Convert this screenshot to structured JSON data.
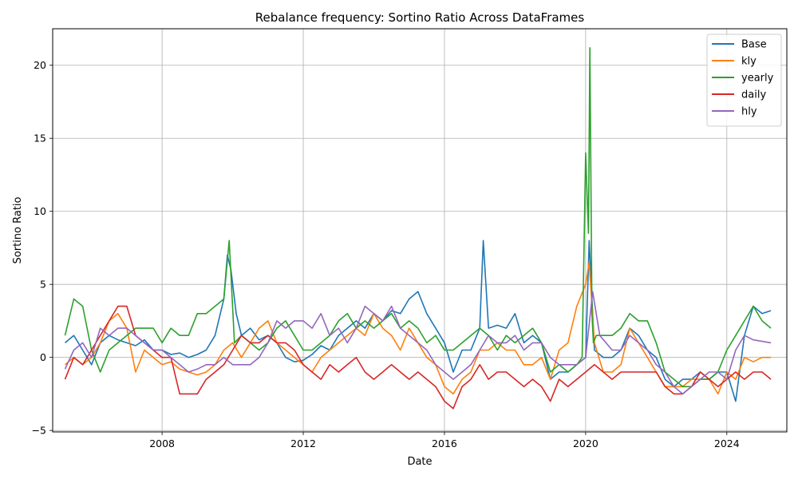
{
  "chart_data": {
    "type": "line",
    "title": "Rebalance frequency: Sortino Ratio Across DataFrames",
    "xlabel": "Date",
    "ylabel": "Sortino Ratio",
    "xlim": [
      2004.9,
      2025.7
    ],
    "ylim": [
      -5.1,
      22.5
    ],
    "x_ticks": [
      2008,
      2012,
      2016,
      2020,
      2024
    ],
    "x_tick_labels": [
      "2008",
      "2012",
      "2016",
      "2020",
      "2024"
    ],
    "y_ticks": [
      -5,
      0,
      5,
      10,
      15,
      20
    ],
    "y_tick_labels": [
      "−5",
      "0",
      "5",
      "10",
      "15",
      "20"
    ],
    "grid": true,
    "legend_position": "top-right",
    "series": [
      {
        "name": "Base",
        "color": "#1f77b4",
        "x": [
          2005.25,
          2005.5,
          2005.75,
          2006.0,
          2006.25,
          2006.5,
          2006.75,
          2007.0,
          2007.25,
          2007.5,
          2007.75,
          2008.0,
          2008.25,
          2008.5,
          2008.75,
          2009.0,
          2009.25,
          2009.5,
          2009.75,
          2009.85,
          2009.95,
          2010.1,
          2010.25,
          2010.5,
          2010.75,
          2011.0,
          2011.25,
          2011.5,
          2011.75,
          2012.0,
          2012.25,
          2012.5,
          2012.75,
          2013.0,
          2013.25,
          2013.5,
          2013.75,
          2014.0,
          2014.25,
          2014.5,
          2014.75,
          2015.0,
          2015.25,
          2015.5,
          2015.75,
          2016.0,
          2016.25,
          2016.5,
          2016.75,
          2017.0,
          2017.1,
          2017.25,
          2017.5,
          2017.75,
          2018.0,
          2018.25,
          2018.5,
          2018.75,
          2019.0,
          2019.25,
          2019.5,
          2019.75,
          2020.0,
          2020.1,
          2020.25,
          2020.5,
          2020.75,
          2021.0,
          2021.25,
          2021.5,
          2021.75,
          2022.0,
          2022.25,
          2022.5,
          2022.75,
          2023.0,
          2023.25,
          2023.5,
          2023.75,
          2024.0,
          2024.25,
          2024.5,
          2024.75,
          2025.0,
          2025.25
        ],
        "y": [
          1.0,
          1.5,
          0.5,
          -0.5,
          1.0,
          1.5,
          1.2,
          1.0,
          0.8,
          1.2,
          0.5,
          0.5,
          0.2,
          0.3,
          0.0,
          0.2,
          0.5,
          1.5,
          4.0,
          7.0,
          6.0,
          3.0,
          1.5,
          2.0,
          1.2,
          1.5,
          1.0,
          0.0,
          -0.3,
          -0.2,
          0.2,
          0.8,
          0.5,
          1.5,
          2.0,
          2.5,
          2.0,
          3.0,
          2.5,
          3.2,
          3.0,
          4.0,
          4.5,
          3.0,
          2.0,
          1.0,
          -1.0,
          0.5,
          0.5,
          2.0,
          8.0,
          2.0,
          2.2,
          2.0,
          3.0,
          1.0,
          1.5,
          1.0,
          -1.5,
          -1.0,
          -1.0,
          -0.5,
          0.0,
          8.0,
          0.5,
          0.0,
          0.0,
          0.5,
          2.0,
          1.5,
          0.5,
          0.0,
          -1.5,
          -2.0,
          -1.5,
          -1.5,
          -1.0,
          -1.5,
          -1.0,
          -1.0,
          -3.0,
          1.5,
          3.5,
          3.0,
          3.2
        ]
      },
      {
        "name": "kly",
        "color": "#ff7f0e",
        "x": [
          2005.25,
          2005.5,
          2005.75,
          2006.0,
          2006.25,
          2006.5,
          2006.75,
          2007.0,
          2007.25,
          2007.5,
          2007.75,
          2008.0,
          2008.25,
          2008.5,
          2008.75,
          2009.0,
          2009.25,
          2009.5,
          2009.75,
          2010.0,
          2010.25,
          2010.5,
          2010.75,
          2011.0,
          2011.25,
          2011.5,
          2011.75,
          2012.0,
          2012.25,
          2012.5,
          2012.75,
          2013.0,
          2013.25,
          2013.5,
          2013.75,
          2014.0,
          2014.25,
          2014.5,
          2014.75,
          2015.0,
          2015.25,
          2015.5,
          2015.75,
          2016.0,
          2016.25,
          2016.5,
          2016.75,
          2017.0,
          2017.25,
          2017.5,
          2017.75,
          2018.0,
          2018.25,
          2018.5,
          2018.75,
          2019.0,
          2019.25,
          2019.5,
          2019.75,
          2020.0,
          2020.1,
          2020.25,
          2020.5,
          2020.75,
          2021.0,
          2021.25,
          2021.5,
          2021.75,
          2022.0,
          2022.25,
          2022.5,
          2022.75,
          2023.0,
          2023.25,
          2023.5,
          2023.75,
          2024.0,
          2024.25,
          2024.5,
          2024.75,
          2025.0,
          2025.25
        ],
        "y": [
          -0.5,
          0.0,
          -0.5,
          0.0,
          1.0,
          2.5,
          3.0,
          2.0,
          -1.0,
          0.5,
          0.0,
          -0.5,
          -0.3,
          -0.8,
          -1.0,
          -1.2,
          -1.0,
          -0.5,
          0.5,
          1.0,
          0.0,
          1.0,
          2.0,
          2.5,
          1.0,
          0.5,
          0.0,
          -0.5,
          -1.0,
          0.0,
          0.5,
          1.0,
          1.5,
          2.0,
          1.5,
          3.0,
          2.0,
          1.5,
          0.5,
          2.0,
          1.0,
          0.0,
          -0.5,
          -2.0,
          -2.5,
          -1.5,
          -1.0,
          0.5,
          0.5,
          1.0,
          0.5,
          0.5,
          -0.5,
          -0.5,
          0.0,
          -1.5,
          0.5,
          1.0,
          3.5,
          5.0,
          6.5,
          1.0,
          -1.0,
          -1.0,
          -0.5,
          2.0,
          1.0,
          0.0,
          -1.0,
          -2.0,
          -2.0,
          -2.0,
          -1.5,
          -1.5,
          -1.5,
          -2.5,
          -1.0,
          -1.5,
          0.0,
          -0.3,
          0.0,
          0.0
        ]
      },
      {
        "name": "yearly",
        "color": "#2ca02c",
        "x": [
          2005.25,
          2005.5,
          2005.75,
          2006.0,
          2006.25,
          2006.5,
          2006.75,
          2007.0,
          2007.25,
          2007.5,
          2007.75,
          2008.0,
          2008.25,
          2008.5,
          2008.75,
          2009.0,
          2009.25,
          2009.5,
          2009.75,
          2009.9,
          2010.05,
          2010.25,
          2010.5,
          2010.75,
          2011.0,
          2011.25,
          2011.5,
          2011.75,
          2012.0,
          2012.25,
          2012.5,
          2012.75,
          2013.0,
          2013.25,
          2013.5,
          2013.75,
          2014.0,
          2014.25,
          2014.5,
          2014.75,
          2015.0,
          2015.25,
          2015.5,
          2015.75,
          2016.0,
          2016.25,
          2016.5,
          2016.75,
          2017.0,
          2017.25,
          2017.5,
          2017.75,
          2018.0,
          2018.25,
          2018.5,
          2018.75,
          2019.0,
          2019.25,
          2019.5,
          2019.75,
          2019.9,
          2020.0,
          2020.08,
          2020.12,
          2020.18,
          2020.22,
          2020.3,
          2020.5,
          2020.75,
          2021.0,
          2021.25,
          2021.5,
          2021.75,
          2022.0,
          2022.25,
          2022.5,
          2022.75,
          2023.0,
          2023.25,
          2023.5,
          2023.75,
          2024.0,
          2024.25,
          2024.5,
          2024.75,
          2025.0,
          2025.25
        ],
        "y": [
          1.5,
          4.0,
          3.5,
          0.5,
          -1.0,
          0.5,
          1.0,
          1.5,
          2.0,
          2.0,
          2.0,
          1.0,
          2.0,
          1.5,
          1.5,
          3.0,
          3.0,
          3.5,
          4.0,
          8.0,
          1.0,
          1.5,
          1.0,
          0.5,
          1.0,
          2.0,
          2.5,
          1.5,
          0.5,
          0.5,
          1.0,
          1.5,
          2.5,
          3.0,
          2.0,
          2.5,
          2.0,
          2.5,
          3.0,
          2.0,
          2.5,
          2.0,
          1.0,
          1.5,
          0.5,
          0.5,
          1.0,
          1.5,
          2.0,
          1.5,
          0.5,
          1.5,
          1.0,
          1.5,
          2.0,
          1.0,
          -1.0,
          -0.5,
          -1.0,
          -0.5,
          0.0,
          14.0,
          8.5,
          21.2,
          3.0,
          1.0,
          1.5,
          1.5,
          1.5,
          2.0,
          3.0,
          2.5,
          2.5,
          1.0,
          -1.0,
          -1.5,
          -2.0,
          -2.0,
          -1.5,
          -1.5,
          -1.0,
          0.5,
          1.5,
          2.5,
          3.5,
          2.5,
          2.0
        ]
      },
      {
        "name": "daily",
        "color": "#d62728",
        "x": [
          2005.25,
          2005.5,
          2005.75,
          2006.0,
          2006.25,
          2006.5,
          2006.75,
          2007.0,
          2007.25,
          2007.5,
          2007.75,
          2008.0,
          2008.25,
          2008.5,
          2008.75,
          2009.0,
          2009.25,
          2009.5,
          2009.75,
          2010.0,
          2010.25,
          2010.5,
          2010.75,
          2011.0,
          2011.25,
          2011.5,
          2011.75,
          2012.0,
          2012.25,
          2012.5,
          2012.75,
          2013.0,
          2013.25,
          2013.5,
          2013.75,
          2014.0,
          2014.25,
          2014.5,
          2014.75,
          2015.0,
          2015.25,
          2015.5,
          2015.75,
          2016.0,
          2016.25,
          2016.5,
          2016.75,
          2017.0,
          2017.25,
          2017.5,
          2017.75,
          2018.0,
          2018.25,
          2018.5,
          2018.75,
          2019.0,
          2019.25,
          2019.5,
          2019.75,
          2020.0,
          2020.25,
          2020.5,
          2020.75,
          2021.0,
          2021.25,
          2021.5,
          2021.75,
          2022.0,
          2022.25,
          2022.5,
          2022.75,
          2023.0,
          2023.25,
          2023.5,
          2023.75,
          2024.0,
          2024.25,
          2024.5,
          2024.75,
          2025.0,
          2025.25
        ],
        "y": [
          -1.5,
          0.0,
          -0.5,
          0.5,
          1.5,
          2.5,
          3.5,
          3.5,
          1.5,
          1.0,
          0.5,
          0.0,
          0.0,
          -2.5,
          -2.5,
          -2.5,
          -1.5,
          -1.0,
          -0.5,
          0.5,
          1.5,
          1.0,
          1.0,
          1.5,
          1.0,
          1.0,
          0.5,
          -0.5,
          -1.0,
          -1.5,
          -0.5,
          -1.0,
          -0.5,
          0.0,
          -1.0,
          -1.5,
          -1.0,
          -0.5,
          -1.0,
          -1.5,
          -1.0,
          -1.5,
          -2.0,
          -3.0,
          -3.5,
          -2.0,
          -1.5,
          -0.5,
          -1.5,
          -1.0,
          -1.0,
          -1.5,
          -2.0,
          -1.5,
          -2.0,
          -3.0,
          -1.5,
          -2.0,
          -1.5,
          -1.0,
          -0.5,
          -1.0,
          -1.5,
          -1.0,
          -1.0,
          -1.0,
          -1.0,
          -1.0,
          -2.0,
          -2.5,
          -2.5,
          -2.0,
          -1.0,
          -1.5,
          -2.0,
          -1.5,
          -1.0,
          -1.5,
          -1.0,
          -1.0,
          -1.5
        ]
      },
      {
        "name": "hly",
        "color": "#9467bd",
        "x": [
          2005.25,
          2005.5,
          2005.75,
          2006.0,
          2006.25,
          2006.5,
          2006.75,
          2007.0,
          2007.25,
          2007.5,
          2007.75,
          2008.0,
          2008.25,
          2008.5,
          2008.75,
          2009.0,
          2009.25,
          2009.5,
          2009.75,
          2010.0,
          2010.25,
          2010.5,
          2010.75,
          2011.0,
          2011.25,
          2011.5,
          2011.75,
          2012.0,
          2012.25,
          2012.5,
          2012.75,
          2013.0,
          2013.25,
          2013.5,
          2013.75,
          2014.0,
          2014.25,
          2014.5,
          2014.75,
          2015.0,
          2015.25,
          2015.5,
          2015.75,
          2016.0,
          2016.25,
          2016.5,
          2016.75,
          2017.0,
          2017.25,
          2017.5,
          2017.75,
          2018.0,
          2018.25,
          2018.5,
          2018.75,
          2019.0,
          2019.25,
          2019.5,
          2019.75,
          2020.0,
          2020.2,
          2020.4,
          2020.75,
          2021.0,
          2021.25,
          2021.5,
          2021.75,
          2022.0,
          2022.25,
          2022.5,
          2022.75,
          2023.0,
          2023.25,
          2023.5,
          2023.75,
          2024.0,
          2024.25,
          2024.5,
          2024.75,
          2025.0,
          2025.25
        ],
        "y": [
          -0.8,
          0.5,
          1.0,
          0.0,
          2.0,
          1.5,
          2.0,
          2.0,
          1.5,
          1.0,
          0.5,
          0.5,
          0.0,
          -0.5,
          -1.0,
          -0.8,
          -0.5,
          -0.5,
          0.0,
          -0.5,
          -0.5,
          -0.5,
          0.0,
          1.0,
          2.5,
          2.0,
          2.5,
          2.5,
          2.0,
          3.0,
          1.5,
          2.0,
          1.0,
          2.0,
          3.5,
          3.0,
          2.5,
          3.5,
          2.0,
          1.5,
          1.0,
          0.5,
          -0.5,
          -1.0,
          -1.5,
          -1.0,
          -0.5,
          0.5,
          1.5,
          1.0,
          1.0,
          1.5,
          0.5,
          1.0,
          1.0,
          0.0,
          -0.5,
          -0.5,
          -0.5,
          0.0,
          4.5,
          1.5,
          0.5,
          0.5,
          1.5,
          1.0,
          0.5,
          -0.5,
          -1.0,
          -2.0,
          -2.5,
          -2.0,
          -1.5,
          -1.0,
          -1.0,
          -1.5,
          0.5,
          1.5,
          1.2,
          1.1,
          1.0
        ]
      }
    ]
  }
}
